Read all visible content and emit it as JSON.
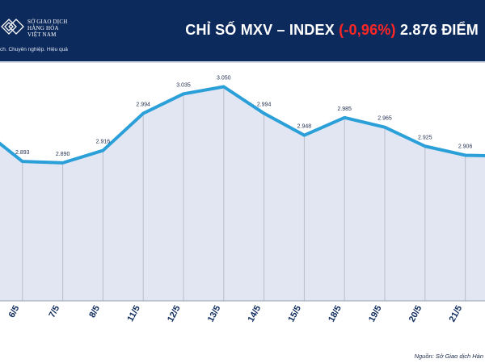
{
  "header": {
    "logo": {
      "line1": "SỞ GIAO DỊCH",
      "line2": "HÀNG HÓA",
      "line3": "VIỆT NAM",
      "slogan": "ch. Chuyên nghiệp. Hiệu quả"
    },
    "title_prefix": "CHỈ SỐ MXV – INDEX",
    "title_change": "(-0,96%)",
    "title_suffix": "2.876 ĐIỂM"
  },
  "footer": {
    "source": "Nguồn: Sở Giao dịch Hàn"
  },
  "colors": {
    "header_bg": "#0d2a5c",
    "line": "#2a9fd8",
    "area": "#e1e6f2",
    "negative": "#ff2626"
  },
  "chart_data": {
    "type": "area",
    "title": "CHỈ SỐ MXV – INDEX (-0,96%) 2.876 ĐIỂM",
    "xlabel": "",
    "ylabel": "",
    "ylim": [
      2600,
      3100
    ],
    "grid": "vertical",
    "categories": [
      "",
      "6/5",
      "7/5",
      "8/5",
      "11/5",
      "12/5",
      "13/5",
      "14/5",
      "15/5",
      "18/5",
      "19/5",
      "20/5",
      "21/5",
      ""
    ],
    "values": [
      2960,
      2893,
      2890,
      2916,
      2994,
      3035,
      3050,
      2994,
      2948,
      2985,
      2965,
      2925,
      2906,
      2904
    ],
    "data_labels": [
      "",
      "2.893",
      "2.890",
      "2.916",
      "2.994",
      "3.035",
      "3.050",
      "2.994",
      "2.948",
      "2.985",
      "2.965",
      "2.925",
      "2.906",
      ""
    ]
  }
}
